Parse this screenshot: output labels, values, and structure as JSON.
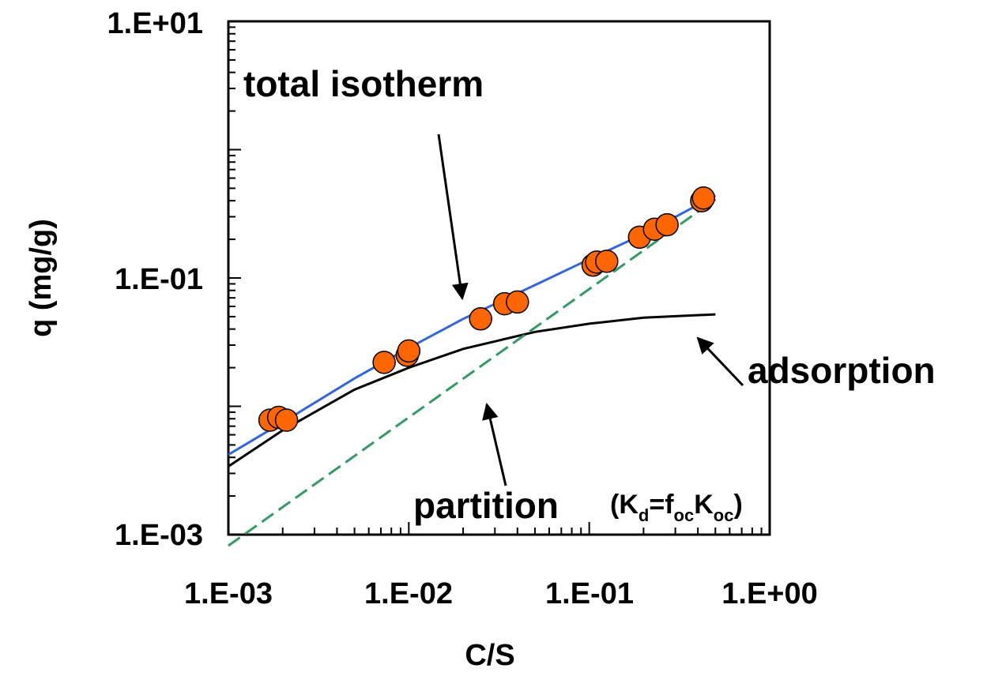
{
  "chart_data": {
    "type": "scatter",
    "xlabel": "C/S",
    "ylabel": "q (mg/g)",
    "xscale": "log",
    "yscale": "log",
    "xlim": [
      0.001,
      1
    ],
    "ylim": [
      0.001,
      10
    ],
    "x_ticks": [
      "1.E-03",
      "1.E-02",
      "1.E-01",
      "1.E+00"
    ],
    "y_ticks": [
      "1.E-03",
      "1.E-01",
      "1.E+01"
    ],
    "grid": false,
    "series": [
      {
        "kind": "points",
        "color": "#ff6600",
        "x": [
          0.0017,
          0.0019,
          0.0021,
          0.0073,
          0.0098,
          0.01,
          0.025,
          0.034,
          0.04,
          0.105,
          0.11,
          0.125,
          0.19,
          0.23,
          0.27,
          0.42,
          0.43
        ],
        "y": [
          0.0078,
          0.0082,
          0.0078,
          0.022,
          0.025,
          0.027,
          0.048,
          0.063,
          0.065,
          0.126,
          0.133,
          0.135,
          0.208,
          0.24,
          0.26,
          0.4,
          0.42
        ]
      },
      {
        "kind": "line",
        "color": "#3366dd",
        "style": "solid",
        "x": [
          0.001,
          0.002,
          0.005,
          0.01,
          0.02,
          0.05,
          0.1,
          0.2,
          0.5
        ],
        "y": [
          0.0042,
          0.0075,
          0.0165,
          0.0285,
          0.048,
          0.088,
          0.14,
          0.22,
          0.44
        ]
      },
      {
        "kind": "line",
        "color": "#000000",
        "style": "solid",
        "x": [
          0.001,
          0.002,
          0.005,
          0.01,
          0.02,
          0.05,
          0.1,
          0.2,
          0.5
        ],
        "y": [
          0.0034,
          0.0065,
          0.0135,
          0.02,
          0.028,
          0.038,
          0.044,
          0.049,
          0.052
        ]
      },
      {
        "kind": "line",
        "color": "#339966",
        "style": "dashed",
        "x": [
          0.001,
          0.5
        ],
        "y": [
          0.00082,
          0.41
        ]
      }
    ],
    "annotations": [
      {
        "text": "total isotherm",
        "x": 0.0062,
        "y": 5.0,
        "arrow_to": [
          0.025,
          0.048
        ]
      },
      {
        "text": "adsorption",
        "x": 1.3,
        "y": 0.026,
        "arrow_to": [
          0.5,
          0.049
        ]
      },
      {
        "text": "partition",
        "x": 0.04,
        "y": 0.0016,
        "arrow_to": [
          0.03,
          0.012
        ]
      },
      {
        "text": "(K",
        "sub1": "d",
        "mid": "=f",
        "sub2": "oc",
        "mid2": "K",
        "sub3": "oc",
        "end": ")",
        "x": 0.2,
        "y": 0.0016
      }
    ]
  }
}
